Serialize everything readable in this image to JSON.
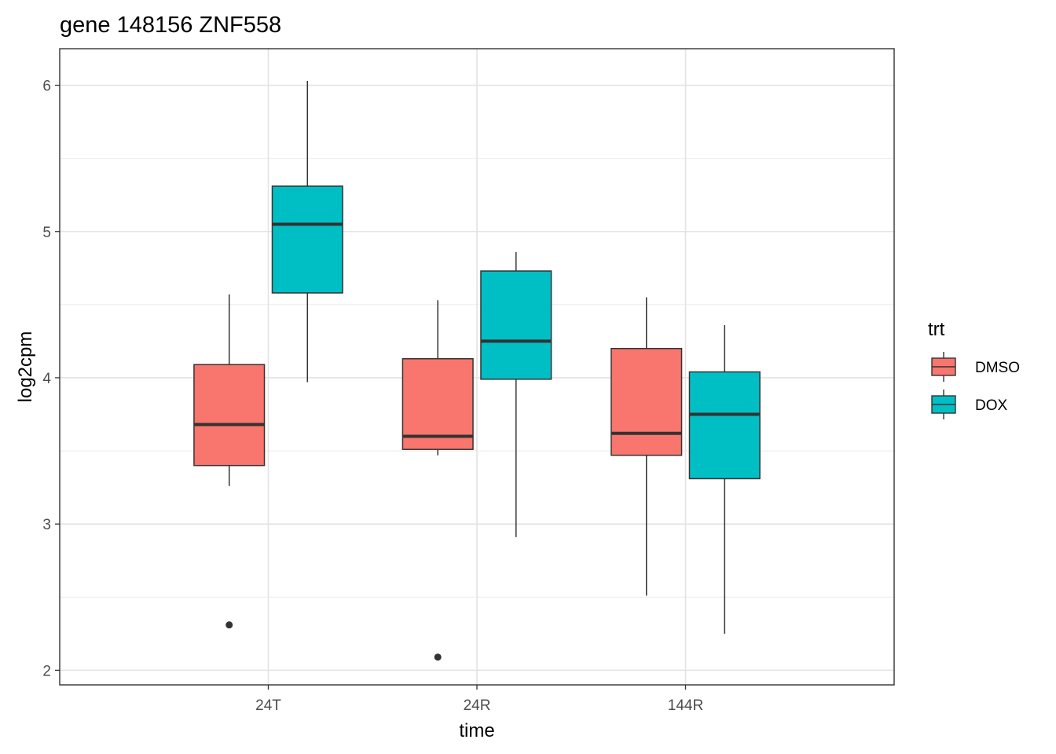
{
  "chart_data": {
    "type": "boxplot",
    "title": "gene 148156 ZNF558",
    "xlabel": "time",
    "ylabel": "log2cpm",
    "categories": [
      "24T",
      "24R",
      "144R"
    ],
    "ylim": [
      1.9,
      6.25
    ],
    "yticks": [
      2,
      3,
      4,
      5,
      6
    ],
    "grid": true,
    "legend": {
      "title": "trt",
      "position": "right"
    },
    "series": [
      {
        "name": "DMSO",
        "color": "#F8766D",
        "boxes": [
          {
            "category": "24T",
            "lower_whisker": 3.26,
            "q1": 3.4,
            "median": 3.68,
            "q3": 4.09,
            "upper_whisker": 4.57,
            "outliers": [
              2.31
            ]
          },
          {
            "category": "24R",
            "lower_whisker": 3.47,
            "q1": 3.51,
            "median": 3.6,
            "q3": 4.13,
            "upper_whisker": 4.53,
            "outliers": [
              2.09
            ]
          },
          {
            "category": "144R",
            "lower_whisker": 2.51,
            "q1": 3.47,
            "median": 3.62,
            "q3": 4.2,
            "upper_whisker": 4.55,
            "outliers": []
          }
        ]
      },
      {
        "name": "DOX",
        "color": "#00BFC4",
        "boxes": [
          {
            "category": "24T",
            "lower_whisker": 3.97,
            "q1": 4.58,
            "median": 5.05,
            "q3": 5.31,
            "upper_whisker": 6.03,
            "outliers": []
          },
          {
            "category": "24R",
            "lower_whisker": 2.91,
            "q1": 3.99,
            "median": 4.25,
            "q3": 4.73,
            "upper_whisker": 4.86,
            "outliers": []
          },
          {
            "category": "144R",
            "lower_whisker": 2.25,
            "q1": 3.31,
            "median": 3.75,
            "q3": 4.04,
            "upper_whisker": 4.36,
            "outliers": []
          }
        ]
      }
    ]
  }
}
